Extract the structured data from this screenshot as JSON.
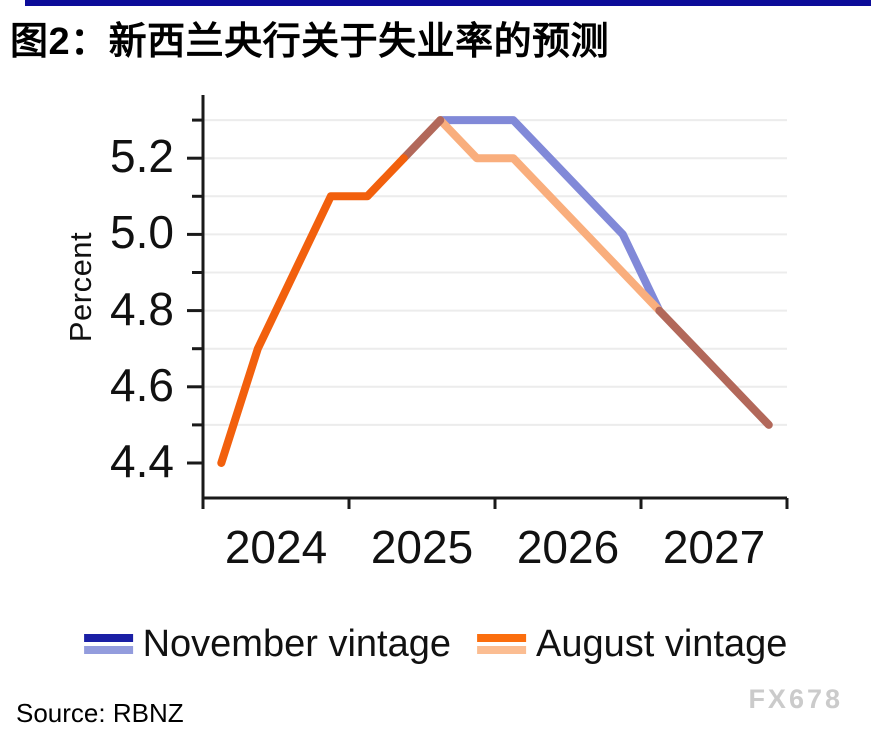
{
  "title": "图2：新西兰央行关于失业率的预测",
  "source": "Source: RBNZ",
  "watermark": "FX678",
  "colors": {
    "accent_bar": "#0c0c99",
    "axis": "#1a1a1a",
    "grid": "#ececec",
    "history_line": "#f2600d",
    "overlap_line": "#b2685a",
    "november_light": "#8189d8",
    "august_light": "#f9ae7d",
    "november_dark": "#1a1fa5",
    "august_dark": "#fb6e0e",
    "legend_november_light": "#939cdd",
    "legend_august_light": "#fbbd92",
    "text": "#111111",
    "watermark": "#cbcbcb"
  },
  "legend": {
    "items": [
      {
        "label": "November vintage",
        "dark_key": "november_dark",
        "light_key": "legend_november_light"
      },
      {
        "label": "August vintage",
        "dark_key": "august_dark",
        "light_key": "legend_august_light"
      }
    ]
  },
  "chart_data": {
    "type": "line",
    "title": "图2：新西兰央行关于失业率的预测",
    "xlabel": "",
    "ylabel": "Percent",
    "categories": [
      "2024Q1",
      "2024Q2",
      "2024Q3",
      "2024Q4",
      "2025Q1",
      "2025Q2",
      "2025Q3",
      "2025Q4",
      "2026Q1",
      "2026Q2",
      "2026Q3",
      "2026Q4",
      "2027Q1",
      "2027Q2",
      "2027Q3",
      "2027Q4"
    ],
    "series": [
      {
        "name": "November vintage",
        "values": [
          4.4,
          4.7,
          4.9,
          5.1,
          5.1,
          5.2,
          5.3,
          5.3,
          5.3,
          5.2,
          5.1,
          5.0,
          4.8,
          4.7,
          4.6,
          4.5
        ]
      },
      {
        "name": "August vintage",
        "values": [
          4.4,
          4.7,
          4.9,
          5.1,
          5.1,
          5.2,
          5.3,
          5.2,
          5.2,
          5.1,
          5.0,
          4.9,
          4.8,
          4.7,
          4.6,
          4.5
        ]
      }
    ],
    "segments": [
      {
        "name": "november-forecast-line",
        "series": "November vintage",
        "from": 6,
        "to": 12,
        "color_key": "november_light"
      },
      {
        "name": "august-forecast-line",
        "series": "August vintage",
        "from": 6,
        "to": 12,
        "color_key": "august_light"
      },
      {
        "name": "overlap-rise-line",
        "series": "November vintage",
        "from": 5,
        "to": 6,
        "color_key": "overlap_line"
      },
      {
        "name": "history-line",
        "series": "November vintage",
        "from": 0,
        "to": 5,
        "color_key": "history_line"
      },
      {
        "name": "overlap-tail-line",
        "series": "November vintage",
        "from": 12,
        "to": 15,
        "color_key": "overlap_line"
      }
    ],
    "x_year_labels": [
      "2024",
      "2025",
      "2026",
      "2027"
    ],
    "y_major_ticks": [
      {
        "value": 5.2,
        "label": "5.2"
      },
      {
        "value": 5.0,
        "label": "5.0"
      },
      {
        "value": 4.8,
        "label": "4.8"
      },
      {
        "value": 4.6,
        "label": "4.6"
      },
      {
        "value": 4.4,
        "label": "4.4"
      }
    ],
    "y_minor_ticks": [
      5.3,
      5.1,
      4.9,
      4.7,
      4.5
    ],
    "gridline_values": [
      4.5,
      4.6,
      4.7,
      4.8,
      4.9,
      5.0,
      5.1,
      5.2,
      5.3
    ],
    "ylim": [
      4.31,
      5.37
    ],
    "grid": "horizontal",
    "legend_position": "bottom"
  }
}
